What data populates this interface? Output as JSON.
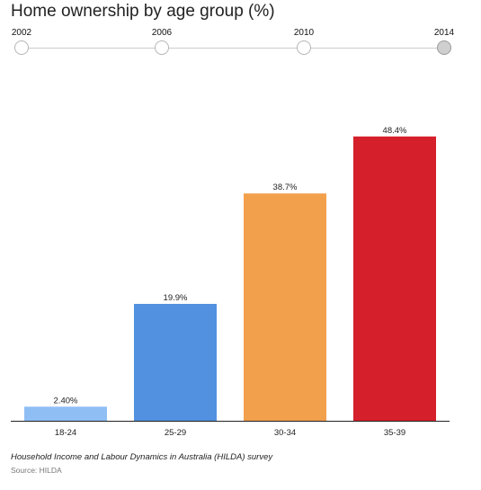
{
  "chart_title": "Home ownership by age group (%)",
  "timeline": {
    "years": [
      "2002",
      "2006",
      "2010",
      "2014"
    ],
    "selected": "2014"
  },
  "chart_data": {
    "type": "bar",
    "title": "Home ownership by age group (%)",
    "categories": [
      "18-24",
      "25-29",
      "30-34",
      "35-39"
    ],
    "values": [
      2.4,
      19.9,
      38.7,
      48.4
    ],
    "value_labels": [
      "2.40%",
      "19.9%",
      "38.7%",
      "48.4%"
    ],
    "colors": [
      "#8fbef5",
      "#5291e0",
      "#f3a04d",
      "#d51f2a"
    ],
    "ylim": [
      0,
      60
    ],
    "grid": false,
    "xlabel": "",
    "ylabel": ""
  },
  "footer": {
    "note": "Household Income and Labour Dynamics in Australia (HILDA) survey",
    "source": "Source: HILDA"
  }
}
